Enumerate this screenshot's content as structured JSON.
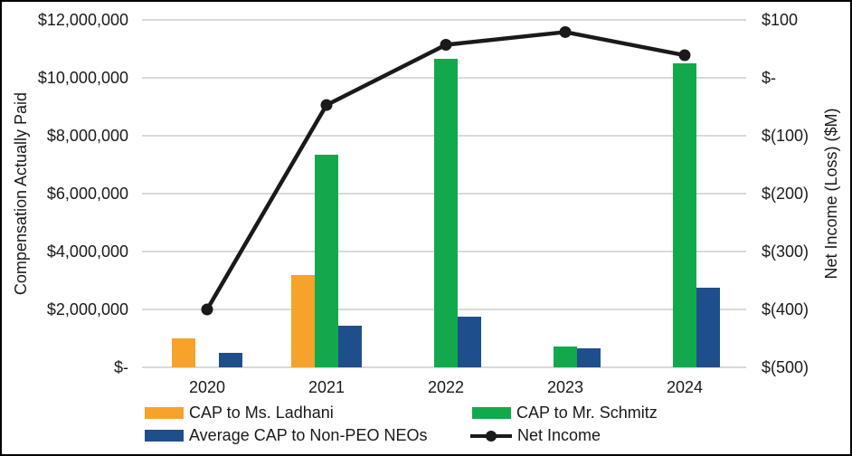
{
  "chart_data": {
    "type": "bar",
    "subtype": "combo bar + line, dual axis",
    "categories": [
      "2020",
      "2021",
      "2022",
      "2023",
      "2024"
    ],
    "series": [
      {
        "name": "CAP to Ms. Ladhani",
        "type": "bar",
        "axis": "left",
        "color": "#F6A22B",
        "values": [
          1000000,
          3200000,
          null,
          null,
          null
        ]
      },
      {
        "name": "CAP to Mr. Schmitz",
        "type": "bar",
        "axis": "left",
        "color": "#12A94C",
        "values": [
          null,
          7350000,
          10650000,
          720000,
          10500000
        ]
      },
      {
        "name": "Average CAP to Non-PEO NEOs",
        "type": "bar",
        "axis": "left",
        "color": "#1F4E8C",
        "values": [
          500000,
          1450000,
          1750000,
          650000,
          2750000
        ]
      },
      {
        "name": "Net Income",
        "type": "line",
        "axis": "right",
        "color": "#1A1A1A",
        "values": [
          -400,
          -47,
          57,
          79,
          39
        ]
      }
    ],
    "left_axis": {
      "title": "Compensation Actually Paid",
      "min": 0,
      "max": 12000000,
      "step": 2000000,
      "tick_labels": [
        "$12,000,000",
        "$10,000,000",
        "$8,000,000",
        "$6,000,000",
        "$4,000,000",
        "$2,000,000",
        "$-"
      ]
    },
    "right_axis": {
      "title": "Net Income (Loss) ($M)",
      "min": -500,
      "max": 100,
      "step": 100,
      "tick_labels": [
        "$100",
        "$-",
        "$(100)",
        "$(200)",
        "$(300)",
        "$(400)",
        "$(500)"
      ]
    },
    "grid": true,
    "legend_position": "bottom"
  },
  "colors": {
    "gridline": "#D9D9D9",
    "border": "#000000",
    "text": "#1A1A1A",
    "background": "#FFFFFF"
  }
}
